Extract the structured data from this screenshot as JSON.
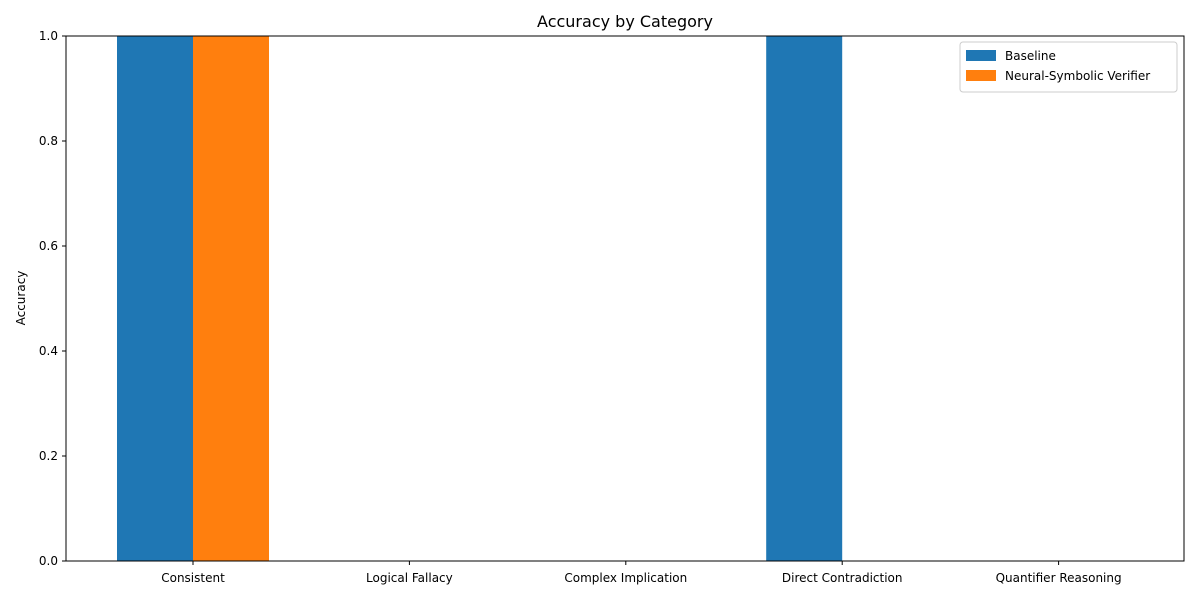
{
  "chart_data": {
    "type": "bar",
    "title": "Accuracy by Category",
    "xlabel": "",
    "ylabel": "Accuracy",
    "categories": [
      "Consistent",
      "Logical Fallacy",
      "Complex Implication",
      "Direct Contradiction",
      "Quantifier Reasoning"
    ],
    "series": [
      {
        "name": "Baseline",
        "values": [
          1.0,
          0.0,
          0.0,
          1.0,
          0.0
        ],
        "color": "#1f77b4"
      },
      {
        "name": "Neural-Symbolic Verifier",
        "values": [
          1.0,
          0.0,
          0.0,
          0.0,
          0.0
        ],
        "color": "#ff7f0e"
      }
    ],
    "ylim": [
      0,
      1.0
    ],
    "yticks": [
      0.0,
      0.2,
      0.4,
      0.6,
      0.8,
      1.0
    ],
    "ytick_labels": [
      "0.0",
      "0.2",
      "0.4",
      "0.6",
      "0.8",
      "1.0"
    ],
    "grid": false,
    "legend_position": "top-right"
  }
}
